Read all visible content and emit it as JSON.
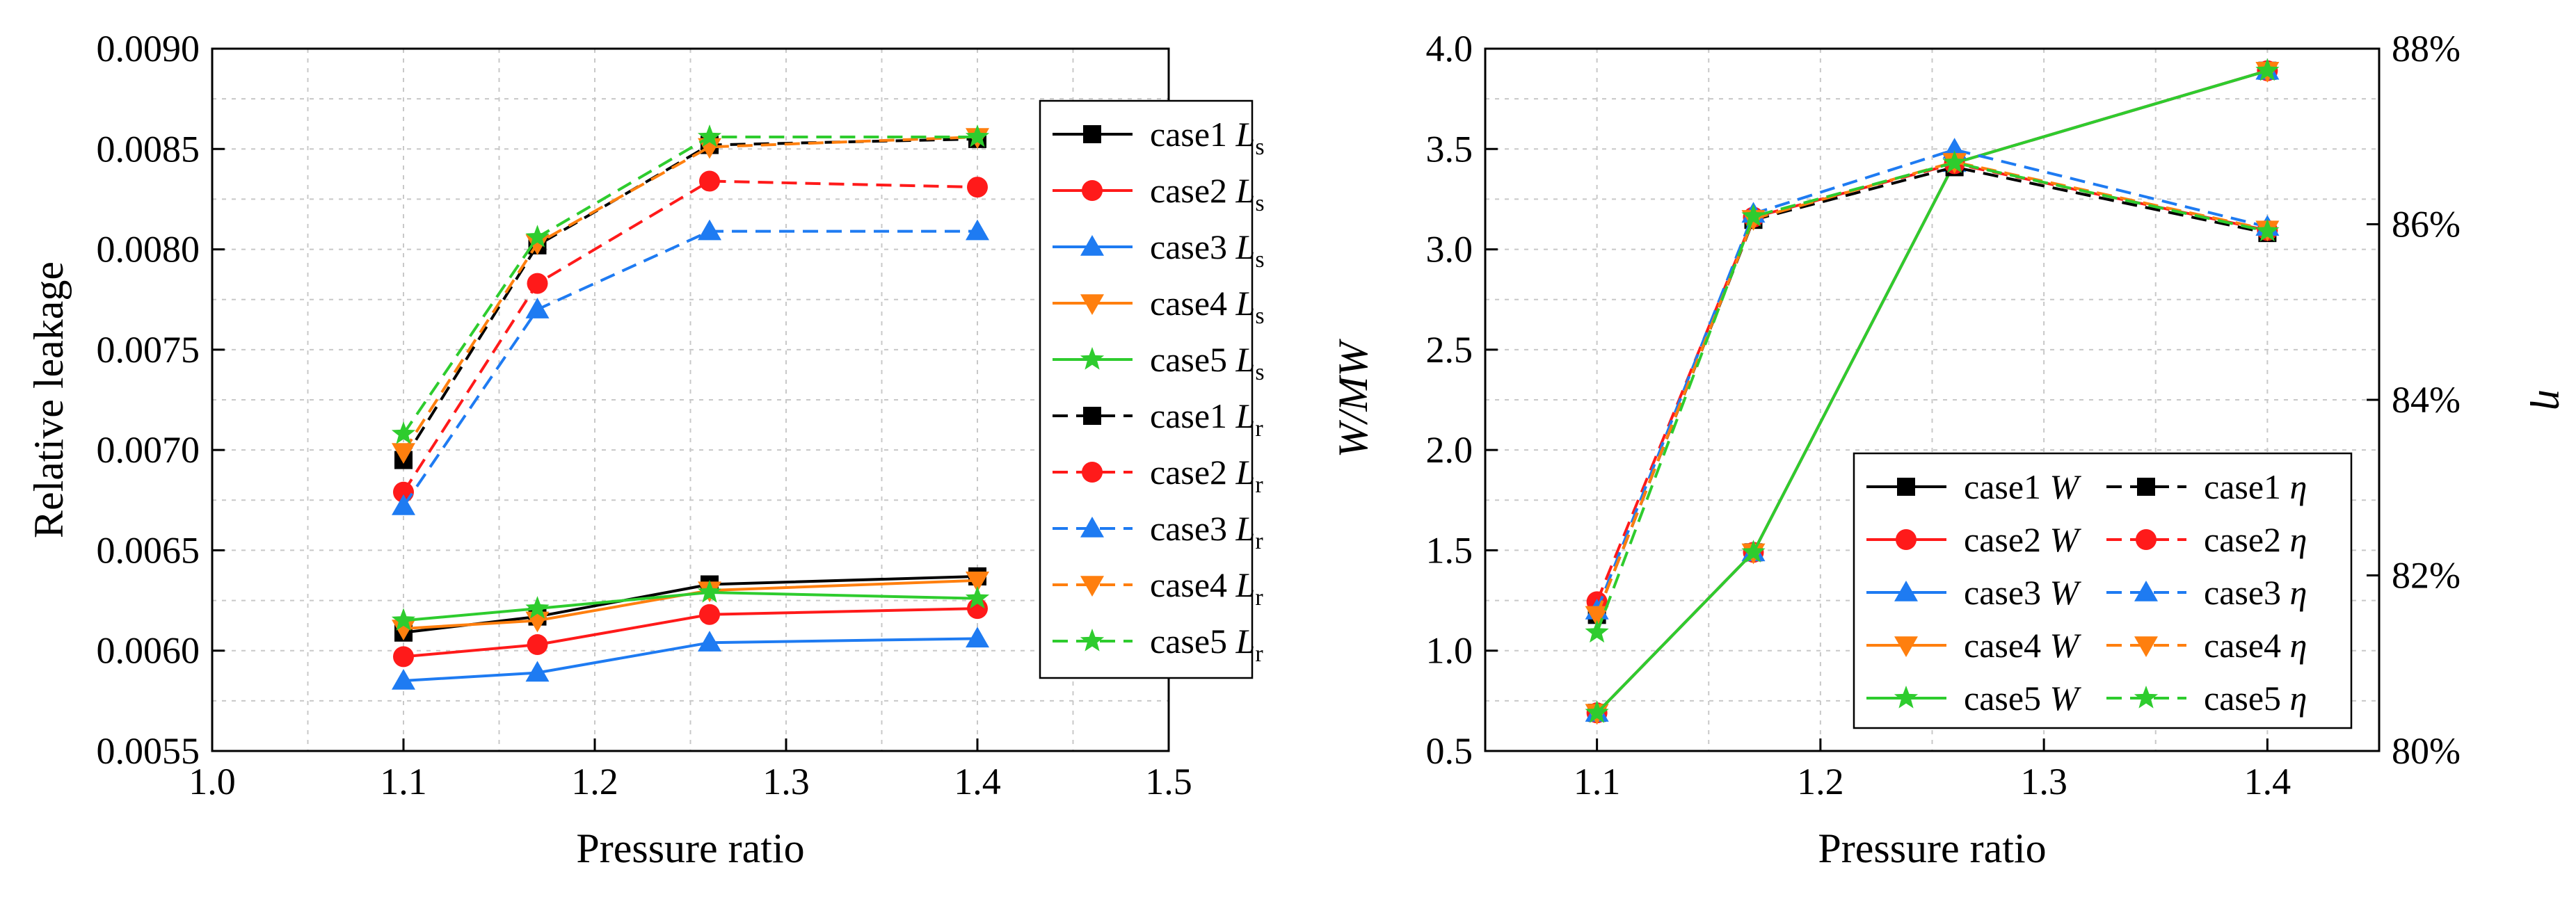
{
  "colors": {
    "case1": "#000000",
    "case2": "#ff1a1a",
    "case3": "#1e7bf2",
    "case4": "#ff7f0e",
    "case5": "#2ecc2e"
  },
  "chart_data": [
    {
      "type": "line",
      "xlabel": "Pressure ratio",
      "ylabel": "Relative leakage",
      "xlim": [
        1.0,
        1.5
      ],
      "ylim": [
        0.0055,
        0.009
      ],
      "x_ticks": [
        "1.0",
        "1.1",
        "1.2",
        "1.3",
        "1.4",
        "1.5"
      ],
      "y_ticks": [
        "0.0055",
        "0.0060",
        "0.0065",
        "0.0070",
        "0.0075",
        "0.0080",
        "0.0085",
        "0.0090"
      ],
      "grid": true,
      "legend_position": "right",
      "x": [
        1.1,
        1.17,
        1.26,
        1.4
      ],
      "series": [
        {
          "name": "case1",
          "var": "L",
          "sub": "s",
          "color_key": "case1",
          "marker": "square",
          "dash": false,
          "values": [
            0.00609,
            0.00617,
            0.00633,
            0.00637
          ]
        },
        {
          "name": "case2",
          "var": "L",
          "sub": "s",
          "color_key": "case2",
          "marker": "circle",
          "dash": false,
          "values": [
            0.00597,
            0.00603,
            0.00618,
            0.00621
          ]
        },
        {
          "name": "case3",
          "var": "L",
          "sub": "s",
          "color_key": "case3",
          "marker": "triangle-up",
          "dash": false,
          "values": [
            0.00585,
            0.00589,
            0.00604,
            0.00606
          ]
        },
        {
          "name": "case4",
          "var": "L",
          "sub": "s",
          "color_key": "case4",
          "marker": "triangle-down",
          "dash": false,
          "values": [
            0.00611,
            0.00615,
            0.0063,
            0.00635
          ]
        },
        {
          "name": "case5",
          "var": "L",
          "sub": "s",
          "color_key": "case5",
          "marker": "star",
          "dash": false,
          "values": [
            0.00615,
            0.00621,
            0.00629,
            0.00626
          ]
        },
        {
          "name": "case1",
          "var": "L",
          "sub": "r",
          "color_key": "case1",
          "marker": "square",
          "dash": true,
          "values": [
            0.00695,
            0.00802,
            0.00852,
            0.00855
          ]
        },
        {
          "name": "case2",
          "var": "L",
          "sub": "r",
          "color_key": "case2",
          "marker": "circle",
          "dash": true,
          "values": [
            0.00679,
            0.00783,
            0.00834,
            0.00831
          ]
        },
        {
          "name": "case3",
          "var": "L",
          "sub": "r",
          "color_key": "case3",
          "marker": "triangle-up",
          "dash": true,
          "values": [
            0.00672,
            0.0077,
            0.00809,
            0.00809
          ]
        },
        {
          "name": "case4",
          "var": "L",
          "sub": "r",
          "color_key": "case4",
          "marker": "triangle-down",
          "dash": true,
          "values": [
            0.00699,
            0.00803,
            0.00851,
            0.00856
          ]
        },
        {
          "name": "case5",
          "var": "L",
          "sub": "r",
          "color_key": "case5",
          "marker": "star",
          "dash": true,
          "values": [
            0.00708,
            0.00806,
            0.00856,
            0.00856
          ]
        }
      ]
    },
    {
      "type": "line",
      "xlabel": "Pressure ratio",
      "ylabel": "W/MW",
      "ylabel2": "η",
      "xlim": [
        1.05,
        1.45
      ],
      "ylim": [
        0.5,
        4.0
      ],
      "y2lim": [
        80,
        88
      ],
      "x_ticks": [
        "1.1",
        "1.2",
        "1.3",
        "1.4"
      ],
      "y_ticks": [
        "0.5",
        "1.0",
        "1.5",
        "2.0",
        "2.5",
        "3.0",
        "3.5",
        "4.0"
      ],
      "y2_ticks": [
        "80%",
        "82%",
        "84%",
        "86%",
        "88%"
      ],
      "grid": true,
      "legend_position": "bottom-right",
      "x": [
        1.1,
        1.17,
        1.26,
        1.4
      ],
      "series": [
        {
          "name": "case1",
          "var": "W",
          "color_key": "case1",
          "marker": "square",
          "dash": false,
          "axis": "left",
          "values": [
            0.69,
            1.49,
            3.43,
            3.89
          ]
        },
        {
          "name": "case2",
          "var": "W",
          "color_key": "case2",
          "marker": "circle",
          "dash": false,
          "axis": "left",
          "values": [
            0.69,
            1.49,
            3.43,
            3.89
          ]
        },
        {
          "name": "case3",
          "var": "W",
          "color_key": "case3",
          "marker": "triangle-up",
          "dash": false,
          "axis": "left",
          "values": [
            0.69,
            1.49,
            3.43,
            3.89
          ]
        },
        {
          "name": "case4",
          "var": "W",
          "color_key": "case4",
          "marker": "triangle-down",
          "dash": false,
          "axis": "left",
          "values": [
            0.69,
            1.49,
            3.43,
            3.89
          ]
        },
        {
          "name": "case5",
          "var": "W",
          "color_key": "case5",
          "marker": "star",
          "dash": false,
          "axis": "left",
          "values": [
            0.69,
            1.49,
            3.43,
            3.89
          ]
        },
        {
          "name": "case1",
          "var": "η",
          "color_key": "case1",
          "marker": "square",
          "dash": true,
          "axis": "right",
          "values": [
            81.55,
            86.05,
            86.65,
            85.9
          ]
        },
        {
          "name": "case2",
          "var": "η",
          "color_key": "case2",
          "marker": "circle",
          "dash": true,
          "axis": "right",
          "values": [
            81.7,
            86.08,
            86.69,
            85.93
          ]
        },
        {
          "name": "case3",
          "var": "η",
          "color_key": "case3",
          "marker": "triangle-up",
          "dash": true,
          "axis": "right",
          "values": [
            81.6,
            86.12,
            86.85,
            85.97
          ]
        },
        {
          "name": "case4",
          "var": "η",
          "color_key": "case4",
          "marker": "triangle-down",
          "dash": true,
          "axis": "right",
          "values": [
            81.55,
            86.06,
            86.71,
            85.94
          ]
        },
        {
          "name": "case5",
          "var": "η",
          "color_key": "case5",
          "marker": "star",
          "dash": true,
          "axis": "right",
          "values": [
            81.35,
            86.09,
            86.7,
            85.92
          ]
        }
      ]
    }
  ]
}
